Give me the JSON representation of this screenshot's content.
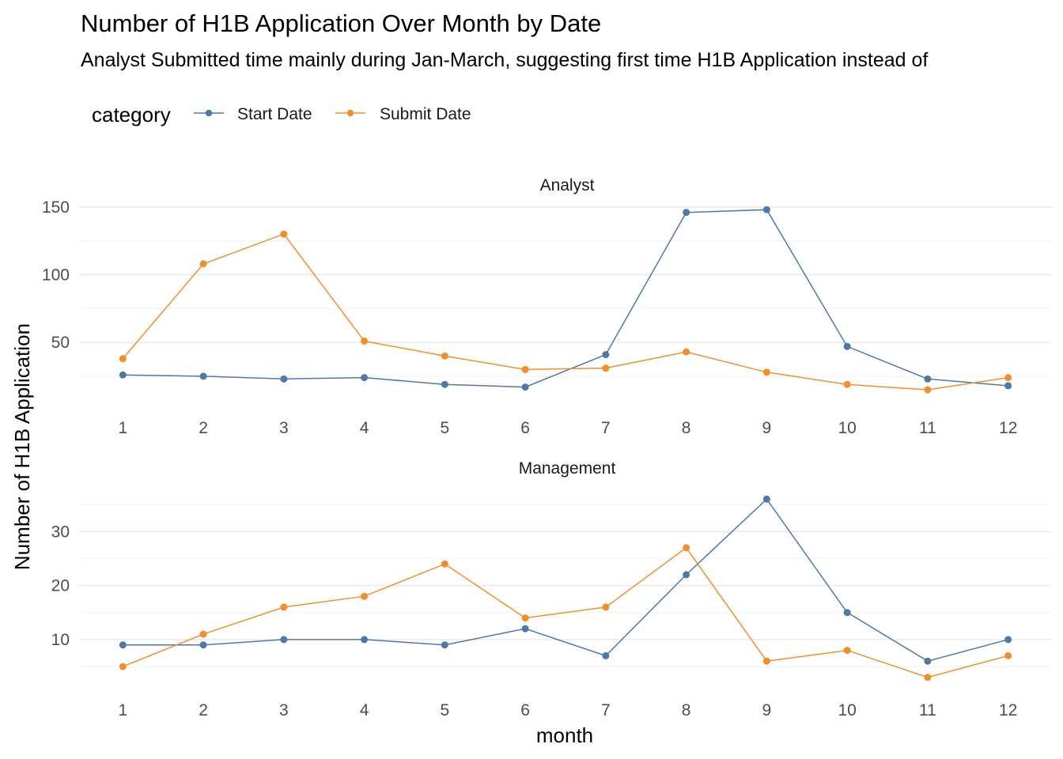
{
  "chart_data": {
    "type": "line",
    "title": "Number of H1B Application Over Month by Date",
    "subtitle": "Analyst Submitted time mainly during Jan-March, suggesting first time H1B Application instead of",
    "xlabel": "month",
    "ylabel": "Number of H1B Application",
    "legend": {
      "title": "category",
      "position": "top-left",
      "entries": [
        "Start Date",
        "Submit Date"
      ]
    },
    "colors": {
      "Start Date": "#4e79a7",
      "Submit Date": "#f28e2b"
    },
    "grid": true,
    "categories": [
      1,
      2,
      3,
      4,
      5,
      6,
      7,
      8,
      9,
      10,
      11,
      12
    ],
    "facets": [
      {
        "name": "Analyst",
        "ylim": [
          12,
          150
        ],
        "yticks": [
          50,
          100,
          150
        ],
        "series": [
          {
            "name": "Start Date",
            "values": [
              26,
              25,
              23,
              24,
              19,
              17,
              41,
              146,
              148,
              47,
              23,
              18
            ]
          },
          {
            "name": "Submit Date",
            "values": [
              38,
              108,
              130,
              51,
              40,
              30,
              31,
              43,
              28,
              19,
              15,
              24
            ]
          }
        ]
      },
      {
        "name": "Management",
        "ylim": [
          3,
          36
        ],
        "yticks": [
          10,
          20,
          30
        ],
        "series": [
          {
            "name": "Start Date",
            "values": [
              9,
              9,
              10,
              10,
              9,
              12,
              7,
              22,
              36,
              15,
              6,
              10
            ]
          },
          {
            "name": "Submit Date",
            "values": [
              5,
              11,
              16,
              18,
              24,
              14,
              16,
              27,
              6,
              8,
              3,
              7
            ]
          }
        ]
      }
    ]
  }
}
